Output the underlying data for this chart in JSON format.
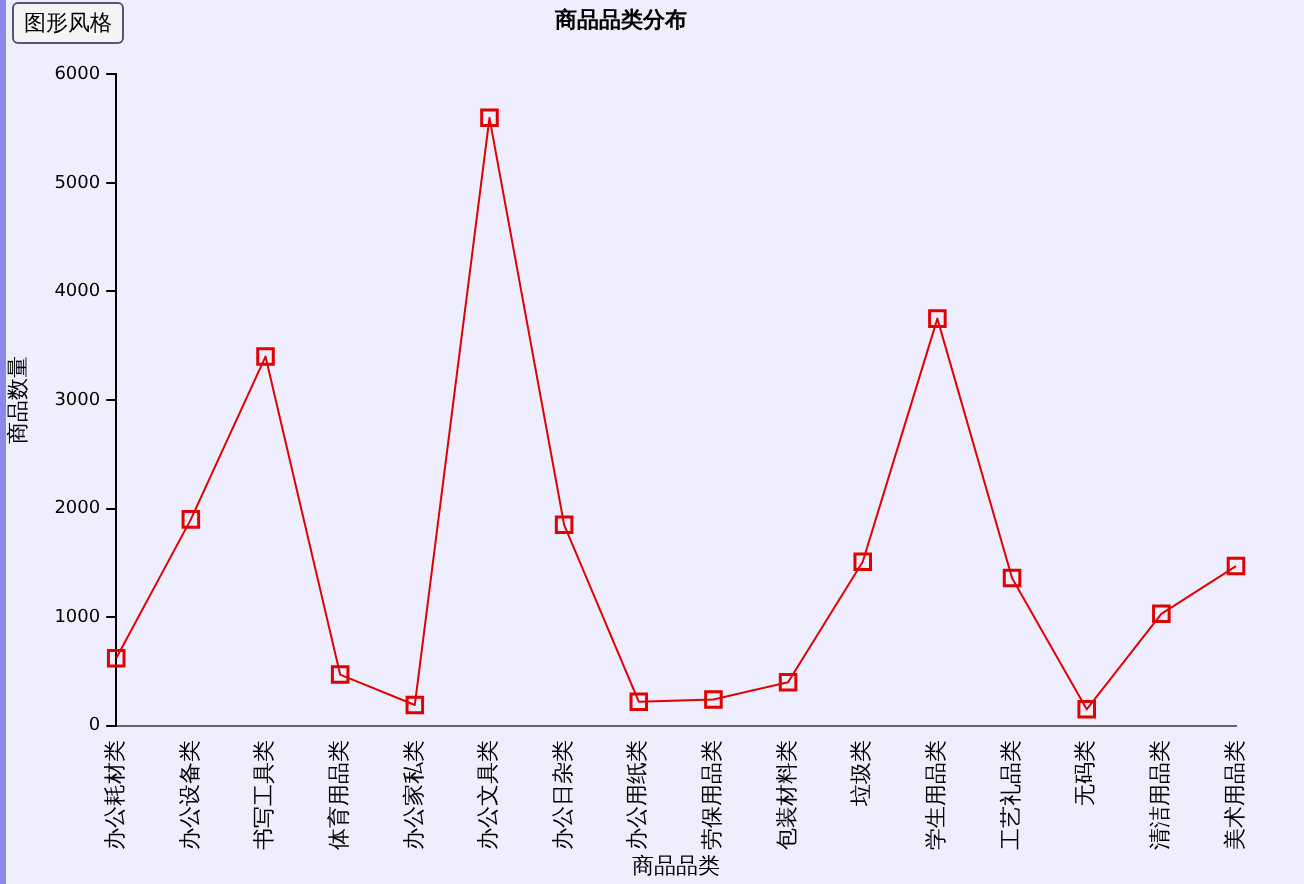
{
  "chart_data": {
    "type": "line",
    "title": "商品品类分布",
    "xlabel": "商品品类",
    "ylabel": "商品数量",
    "categories": [
      "办公耗材类",
      "办公设备类",
      "书写工具类",
      "体育用品类",
      "办公家私类",
      "办公文具类",
      "办公日杂类",
      "办公用纸类",
      "劳保用品类",
      "包装材料类",
      "垃圾类",
      "学生用品类",
      "工艺礼品类",
      "无码类",
      "清洁用品类",
      "美术用品类"
    ],
    "series": [
      {
        "color": "#e00000",
        "values": [
          620,
          1900,
          3400,
          470,
          190,
          5600,
          1850,
          220,
          240,
          400,
          1510,
          3750,
          1360,
          150,
          1030,
          1470
        ]
      }
    ],
    "ylim": [
      0,
      6000
    ],
    "yticks": [
      0,
      1000,
      2000,
      3000,
      4000,
      5000,
      6000
    ],
    "grid": false,
    "legend": false,
    "marker": "square",
    "line_style": "solid",
    "annotations": [
      "图形风格"
    ]
  }
}
